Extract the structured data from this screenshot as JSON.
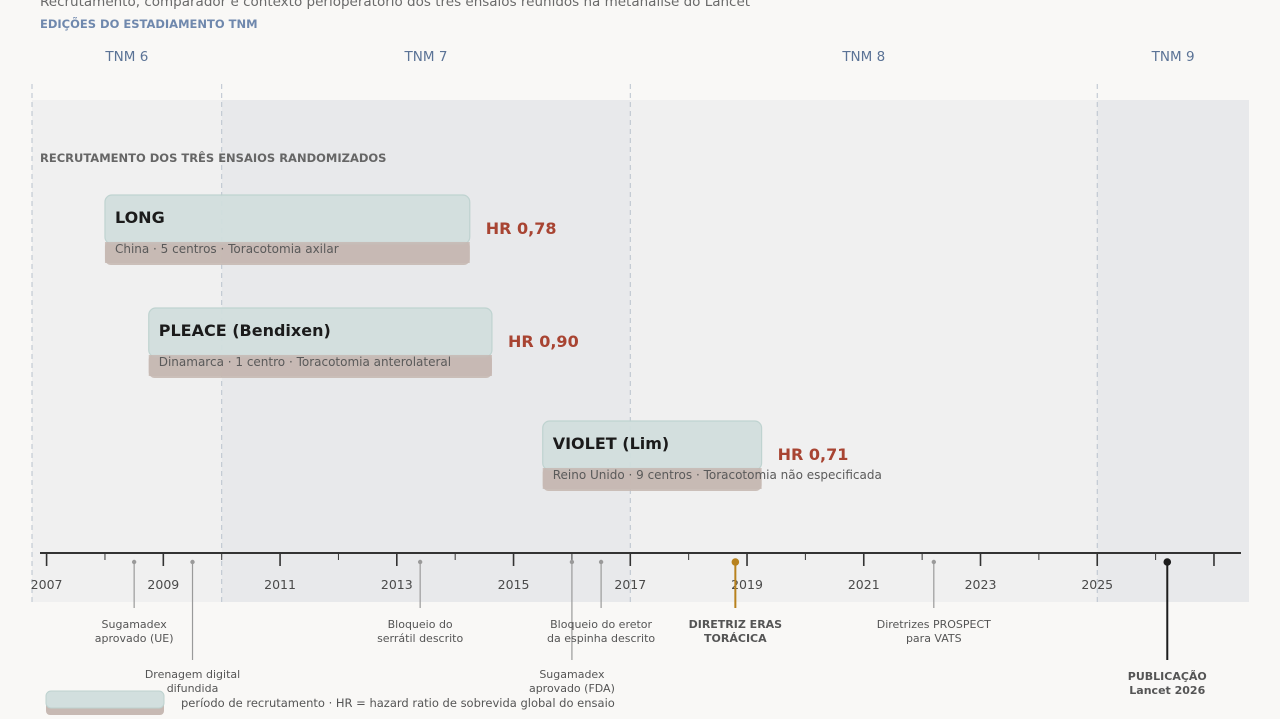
{
  "chart_data": {
    "type": "timeline",
    "subtitle": "Recrutamento, comparador e contexto perioperatório dos três ensaios reunidos na metanálise do Lancet",
    "editions_heading": "EDIÇÕES DO ESTADIAMENTO TNM",
    "trials_heading": "RECRUTAMENTO DOS TRÊS ENSAIOS RANDOMIZADOS",
    "x_range": [
      2006.75,
      2027.6
    ],
    "tick_labels": [
      "2007",
      "2009",
      "2011",
      "2013",
      "2015",
      "2017",
      "2019",
      "2021",
      "2023",
      "2025"
    ],
    "editions": [
      {
        "label": "TNM 6",
        "start": 2006.75,
        "end": 2010.0
      },
      {
        "label": "TNM 7",
        "start": 2010.0,
        "end": 2017.0
      },
      {
        "label": "TNM 8",
        "start": 2017.0,
        "end": 2025.0
      },
      {
        "label": "TNM 9",
        "start": 2025.0,
        "end": 2027.6
      }
    ],
    "trials": [
      {
        "name": "LONG",
        "details": "China · 5 centros  ·  Toracotomia axilar",
        "start": 2008.0,
        "end": 2014.25,
        "hr": "HR 0,78"
      },
      {
        "name": "PLEACE (Bendixen)",
        "details": "Dinamarca · 1 centro  ·  Toracotomia anterolateral",
        "start": 2008.75,
        "end": 2014.63,
        "hr": "HR 0,90"
      },
      {
        "name": "VIOLET (Lim)",
        "details": "Reino Unido · 9 centros  ·  Toracotomia não especificada",
        "start": 2015.5,
        "end": 2019.25,
        "hr": "HR 0,71"
      }
    ],
    "events": [
      {
        "x": 2008.5,
        "label": [
          "Sugamadex",
          "aprovado (UE)"
        ],
        "level": 1,
        "style": "normal"
      },
      {
        "x": 2009.5,
        "label": [
          "Drenagem digital",
          "difundida"
        ],
        "level": 2,
        "style": "normal"
      },
      {
        "x": 2013.4,
        "label": [
          "Bloqueio do",
          "serrátil descrito"
        ],
        "level": 1,
        "style": "normal"
      },
      {
        "x": 2016.0,
        "label": [
          "Sugamadex",
          "aprovado (FDA)"
        ],
        "level": 2,
        "style": "normal"
      },
      {
        "x": 2016.5,
        "label": [
          "Bloqueio do eretor",
          "da espinha descrito"
        ],
        "level": 1,
        "style": "normal"
      },
      {
        "x": 2018.8,
        "label": [
          "DIRETRIZ ERAS",
          "TORÁCICA"
        ],
        "level": 1,
        "style": "highlight"
      },
      {
        "x": 2022.2,
        "label": [
          "Diretrizes PROSPECT",
          "para VATS"
        ],
        "level": 1,
        "style": "normal"
      },
      {
        "x": 2026.2,
        "label": [
          "PUBLICAÇÃO",
          "Lancet 2026"
        ],
        "level": 2,
        "style": "publication"
      }
    ],
    "legend": {
      "text": "período de recrutamento  ·  HR = hazard ratio de sobrevida global do ensaio"
    }
  },
  "colors": {
    "edition_band_a": "#f0f0f0",
    "edition_band_b": "#e8e9eb",
    "trial_box": "#d2dfde",
    "trial_box_stroke": "#bdd2cf",
    "trial_base": "#c7b9b3",
    "hr": "#a84432",
    "edition_label": "#5b7396",
    "highlight": "#b8821e",
    "axis": "#333333"
  }
}
